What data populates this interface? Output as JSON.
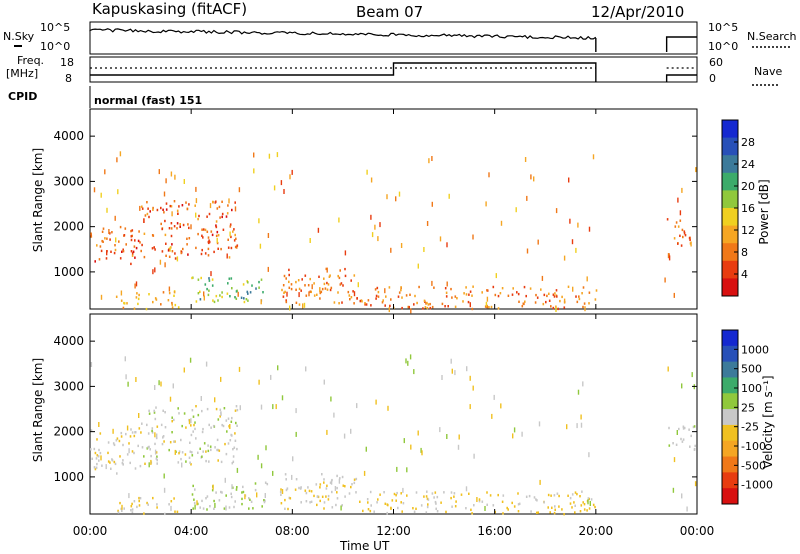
{
  "header": {
    "station": "Kapuskasing (fitACF)",
    "beam": "Beam 07",
    "date": "12/Apr/2010"
  },
  "sky_noise_panel": {
    "left_label": "N.Sky",
    "right_label": "N.Search",
    "left_ticks": [
      "10^5",
      "10^0"
    ],
    "right_ticks": [
      "10^5",
      "10^0"
    ]
  },
  "freq_panel": {
    "left_label_line1": "Freq.",
    "left_label_line2": "[MHz]",
    "right_label": "Nave",
    "left_ticks": [
      "18",
      "8"
    ],
    "right_ticks": [
      "60",
      "0"
    ]
  },
  "cpid": {
    "label": "CPID",
    "mode": "normal (fast) 151"
  },
  "colors": {
    "power_scale": [
      "#1428d0",
      "#2850b8",
      "#3c7a9a",
      "#3cab6a",
      "#90c83c",
      "#f0d020",
      "#f5a623",
      "#f07818",
      "#e83c10",
      "#d81010"
    ],
    "velocity_scale": [
      "#1428d0",
      "#2850b8",
      "#3c7a9a",
      "#3cab6a",
      "#90c83c",
      "#c8c8c8",
      "#f0c020",
      "#f5a623",
      "#f07818",
      "#e83c10",
      "#d81010"
    ]
  },
  "chart_data": [
    {
      "type": "heatmap",
      "name": "Power",
      "ylabel": "Slant Range [km]",
      "xlabel": "Time UT",
      "xlim": [
        "00:00",
        "24:00"
      ],
      "ylim": [
        180,
        4600
      ],
      "x_ticks": [
        "00:00",
        "04:00",
        "08:00",
        "12:00",
        "16:00",
        "20:00",
        "00:00"
      ],
      "y_ticks": [
        1000,
        2000,
        3000,
        4000
      ],
      "colorbar": {
        "label": "Power [dB]",
        "ticks": [
          "28",
          "24",
          "20",
          "16",
          "12",
          "8",
          "4"
        ],
        "range": [
          0,
          30
        ]
      },
      "regions": [
        {
          "time_start": 0.0,
          "time_end": 2.0,
          "range_start": 1200,
          "range_end": 2100,
          "level": 6
        },
        {
          "time_start": 2.0,
          "time_end": 5.8,
          "range_start": 1300,
          "range_end": 2600,
          "level": 6
        },
        {
          "time_start": 1.0,
          "time_end": 3.5,
          "range_start": 200,
          "range_end": 600,
          "level": 10
        },
        {
          "time_start": 4.0,
          "time_end": 7.0,
          "range_start": 300,
          "range_end": 900,
          "level": 18
        },
        {
          "time_start": 7.5,
          "time_end": 10.5,
          "range_start": 300,
          "range_end": 1100,
          "level": 8
        },
        {
          "time_start": 10.5,
          "time_end": 20.0,
          "range_start": 200,
          "range_end": 700,
          "level": 8
        },
        {
          "time_start": 22.8,
          "time_end": 23.9,
          "range_start": 1600,
          "range_end": 2200,
          "level": 7
        }
      ]
    },
    {
      "type": "heatmap",
      "name": "Velocity",
      "ylabel": "Slant Range [km]",
      "xlabel": "Time UT",
      "xlim": [
        "00:00",
        "24:00"
      ],
      "ylim": [
        180,
        4600
      ],
      "x_ticks": [
        "00:00",
        "04:00",
        "08:00",
        "12:00",
        "16:00",
        "20:00",
        "00:00"
      ],
      "y_ticks": [
        1000,
        2000,
        3000,
        4000
      ],
      "colorbar": {
        "label": "Velocity [m s⁻¹]",
        "ticks": [
          "1000",
          "500",
          "100",
          "25",
          "-25",
          "-100",
          "-500",
          "-1000"
        ],
        "range": [
          -1200,
          1200
        ]
      },
      "regions": [
        {
          "time_start": 0.0,
          "time_end": 2.0,
          "range_start": 1100,
          "range_end": 2100,
          "level": -50
        },
        {
          "time_start": 2.0,
          "time_end": 5.8,
          "range_start": 1300,
          "range_end": 2600,
          "level": 0
        },
        {
          "time_start": 1.0,
          "time_end": 3.5,
          "range_start": 200,
          "range_end": 600,
          "level": -150
        },
        {
          "time_start": 4.0,
          "time_end": 7.0,
          "range_start": 300,
          "range_end": 900,
          "level": 60
        },
        {
          "time_start": 7.5,
          "time_end": 10.5,
          "range_start": 300,
          "range_end": 1100,
          "level": -80
        },
        {
          "time_start": 10.5,
          "time_end": 20.0,
          "range_start": 200,
          "range_end": 700,
          "level": -120
        },
        {
          "time_start": 22.8,
          "time_end": 23.9,
          "range_start": 1600,
          "range_end": 2200,
          "level": 20
        }
      ]
    }
  ]
}
